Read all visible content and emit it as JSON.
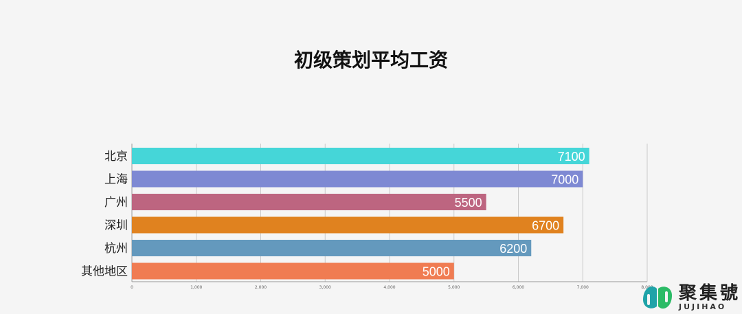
{
  "chart_data": {
    "type": "bar",
    "orientation": "horizontal",
    "title": "初级策划平均工资",
    "categories": [
      "北京",
      "上海",
      "广州",
      "深圳",
      "杭州",
      "其他地区"
    ],
    "values": [
      7100,
      7000,
      5500,
      6700,
      6200,
      5000
    ],
    "colors": [
      "#45d6d8",
      "#7e89d3",
      "#bd6580",
      "#e0821f",
      "#6499bd",
      "#f07c52"
    ],
    "xlim": [
      0,
      8000
    ],
    "xticks": [
      "0",
      "1,000",
      "2,000",
      "3,000",
      "4,000",
      "5,000",
      "6,000",
      "7,000",
      "8,000"
    ],
    "grid": true,
    "data_labels": true
  },
  "logo": {
    "name": "聚集號",
    "sub": "JUJIHAO"
  }
}
